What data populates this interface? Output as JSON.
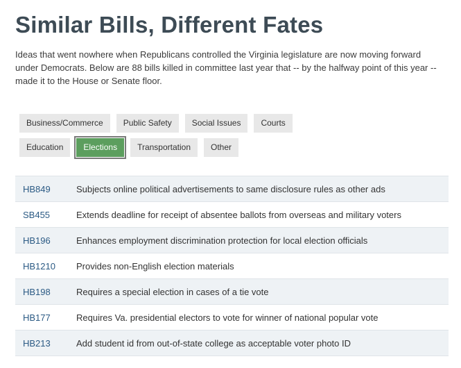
{
  "page": {
    "title": "Similar Bills, Different Fates",
    "description": "Ideas that went nowhere when Republicans controlled the Virginia legislature are now moving forward under Democrats. Below are 88 bills killed in committee last year that -- by the halfway point of this year -- made it to the House or Senate floor."
  },
  "filters": {
    "row1": [
      {
        "label": "Business/Commerce",
        "active": false
      },
      {
        "label": "Public Safety",
        "active": false
      },
      {
        "label": "Social Issues",
        "active": false
      },
      {
        "label": "Courts",
        "active": false
      }
    ],
    "row2": [
      {
        "label": "Education",
        "active": false
      },
      {
        "label": "Elections",
        "active": true
      },
      {
        "label": "Transportation",
        "active": false
      },
      {
        "label": "Other",
        "active": false
      }
    ]
  },
  "bills": [
    {
      "id": "HB849",
      "title": "Subjects online political advertisements to same disclosure rules as other ads"
    },
    {
      "id": "SB455",
      "title": "Extends deadline for receipt of absentee ballots from overseas and military voters"
    },
    {
      "id": "HB196",
      "title": "Enhances employment discrimination protection for local election officials"
    },
    {
      "id": "HB1210",
      "title": "Provides non-English election materials"
    },
    {
      "id": "HB198",
      "title": "Requires a special election in cases of a tie vote"
    },
    {
      "id": "HB177",
      "title": "Requires Va. presidential electors to vote for winner of national popular vote"
    },
    {
      "id": "HB213",
      "title": "Add student id from out-of-state college as acceptable voter photo ID"
    }
  ],
  "colors": {
    "active_filter": "#5c9e5e",
    "bill_id_link": "#2b5a84",
    "row_shade": "#eef2f5",
    "title": "#3d4b55"
  }
}
